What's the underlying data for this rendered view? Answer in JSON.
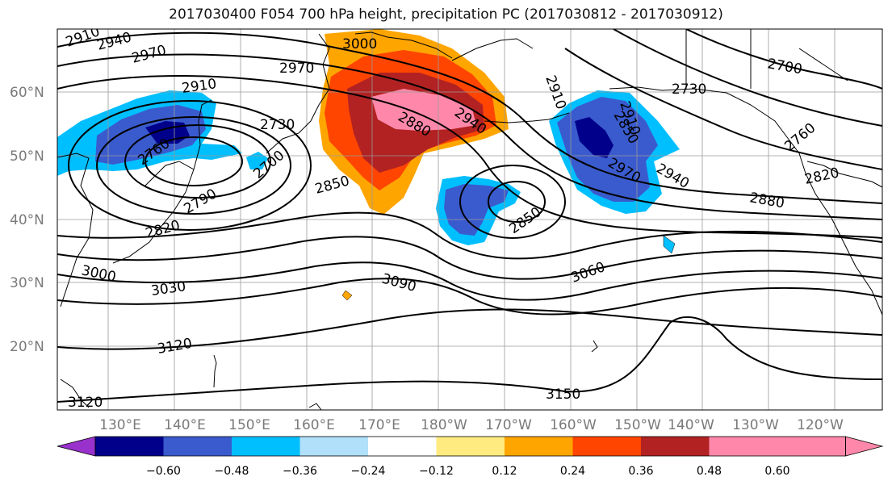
{
  "title": "2017030400 F054 700 hPa height, precipitation PC (2017030812 - 2017030912)",
  "lat_labels": [
    "60°N",
    "50°N",
    "40°N",
    "30°N",
    "20°N"
  ],
  "lon_labels": [
    "130°E",
    "140°E",
    "150°E",
    "160°E",
    "170°E",
    "180°W",
    "170°W",
    "160°W",
    "150°W",
    "140°W",
    "130°W",
    "120°W"
  ],
  "contour_labels": [
    "2910",
    "2940",
    "2970",
    "3000",
    "2970",
    "2910",
    "2730",
    "2760",
    "2700",
    "2790",
    "2820",
    "2850",
    "2880",
    "2940",
    "3000",
    "3030",
    "3090",
    "3120",
    "3150",
    "3120",
    "2910",
    "2850",
    "3060",
    "2760",
    "2820",
    "2880",
    "2940",
    "2970",
    "2850",
    "2910",
    "2730",
    "2700"
  ],
  "colorbar": {
    "ticks": [
      "−0.60",
      "−0.48",
      "−0.36",
      "−0.24",
      "−0.12",
      "0.12",
      "0.24",
      "0.36",
      "0.48",
      "0.60"
    ],
    "colors": [
      "#9932cc",
      "#00008b",
      "#3a5bcd",
      "#00bfff",
      "#b0e0fa",
      "#ffffff",
      "#ffeb80",
      "#ffa500",
      "#ff4500",
      "#b22222",
      "#ff88aa",
      "#ff88aa"
    ]
  }
}
